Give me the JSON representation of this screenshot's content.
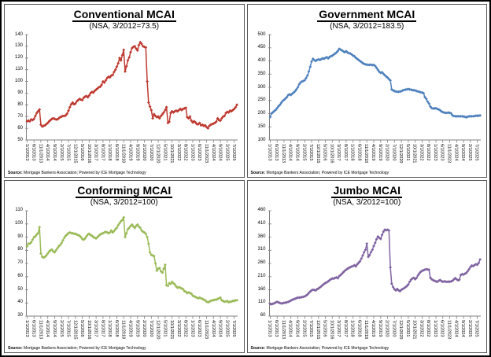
{
  "source_note": {
    "prefix": "Source:",
    "text": " Mortgage Bankers Association; Powered by ICE Mortgage Technology"
  },
  "chart_data": {
    "type": "line",
    "x_note": "monthly values, Jan 2013 through Sep 2025; tick labels every 5 months",
    "x_tick_labels": [
      "1/1/2013",
      "6/1/2013",
      "11/1/2013",
      "4/1/2014",
      "9/1/2014",
      "2/1/2015",
      "7/1/2015",
      "12/1/2015",
      "5/1/2016",
      "10/1/2016",
      "3/1/2017",
      "8/1/2017",
      "1/1/2018",
      "6/1/2018",
      "11/1/2018",
      "4/1/2019",
      "9/1/2019",
      "2/1/2020",
      "7/1/2020",
      "12/1/2020",
      "5/1/2021",
      "10/1/2021",
      "3/1/2022",
      "8/1/2022",
      "1/1/2023",
      "6/1/2023",
      "11/1/2023",
      "4/1/2024",
      "9/1/2024",
      "2/1/2025",
      "7/1/2025"
    ],
    "legend": "none",
    "grid": "off",
    "marker": "diamond",
    "charts": [
      {
        "title": "Conventional MCAI",
        "subtitle": "(NSA, 3/2012=73.5)",
        "color": "#BE3A31",
        "ylim": [
          50,
          140
        ],
        "ystep": 10,
        "values": [
          66,
          66.5,
          66,
          67.5,
          67,
          68,
          70.5,
          73,
          74.5,
          76,
          63,
          61.5,
          62,
          62.5,
          63.5,
          64.5,
          66,
          67,
          68,
          68.5,
          68,
          67.5,
          67.5,
          68.5,
          69.5,
          70,
          70.5,
          70.5,
          71,
          72.5,
          75,
          78,
          80.5,
          82,
          80.5,
          81,
          83,
          84,
          85,
          84.5,
          84,
          86,
          87,
          87.5,
          86.5,
          88,
          90,
          91,
          90.5,
          92,
          93,
          94,
          95,
          95.5,
          97,
          100,
          99,
          101,
          103,
          104,
          103.5,
          105,
          105.5,
          108,
          110,
          112.5,
          115.5,
          120,
          118,
          122.5,
          127,
          108.5,
          113,
          118,
          120.5,
          125,
          128.5,
          129.5,
          130,
          128,
          126.5,
          131,
          133.5,
          132,
          130,
          129.5,
          129,
          100,
          82,
          78.5,
          75.5,
          68.5,
          72,
          70.5,
          69.5,
          70,
          68.5,
          70.5,
          72,
          73.5,
          75.5,
          78,
          64.5,
          65.5,
          73,
          74.5,
          73.5,
          74.5,
          75,
          74.5,
          75.5,
          76.5,
          75.5,
          76.5,
          77,
          77.5,
          69.5,
          68.5,
          70,
          66.5,
          65,
          66,
          65,
          63.5,
          63.5,
          64.5,
          62.5,
          63,
          62,
          62.5,
          61,
          60,
          62,
          63,
          63.5,
          64,
          64.5,
          65.5,
          68.5,
          67,
          66.5,
          68.5,
          70,
          70.5,
          73,
          74,
          73.5,
          75,
          74.5,
          75.5,
          76.5,
          78,
          80
        ]
      },
      {
        "title": "Government MCAI",
        "subtitle": "(NSA, 3/2012=183.5)",
        "color": "#4F81BD",
        "ylim": [
          100,
          500
        ],
        "ystep": 50,
        "values": [
          187,
          201,
          205,
          210,
          214,
          221,
          228,
          233,
          241,
          248,
          252,
          257,
          262,
          270,
          273,
          271,
          276,
          280,
          285,
          292,
          300,
          311,
          318,
          322,
          324,
          327,
          335,
          345,
          360,
          378,
          398,
          408,
          403,
          400,
          404,
          406,
          404,
          407,
          410,
          408,
          412,
          414,
          410,
          415,
          418,
          420,
          424,
          428,
          432,
          438,
          446,
          443,
          440,
          436,
          433,
          437,
          432,
          430,
          428,
          425,
          420,
          418,
          412,
          408,
          404,
          400,
          396,
          392,
          389,
          387,
          386,
          385,
          385,
          386,
          384,
          385,
          381,
          374,
          366,
          359,
          355,
          357,
          351,
          346,
          341,
          337,
          331,
          326,
          292,
          288,
          286,
          284,
          283,
          283,
          284,
          285,
          288,
          290,
          291,
          292,
          293,
          292,
          291,
          289,
          289,
          288,
          286,
          284,
          283,
          281,
          280,
          278,
          263,
          256,
          246,
          238,
          227,
          221,
          219,
          220,
          220,
          218,
          216,
          213,
          208,
          206,
          204,
          203,
          203,
          204,
          203,
          201,
          193,
          191,
          190,
          190,
          190,
          190,
          190,
          190,
          189,
          188,
          186,
          188,
          190,
          190,
          190,
          190,
          191,
          192,
          192,
          192,
          193
        ]
      },
      {
        "title": "Conforming MCAI",
        "subtitle": "(NSA, 3/2012=100)",
        "color": "#9BBB59",
        "ylim": [
          30,
          110
        ],
        "ystep": 10,
        "values": [
          83,
          85,
          85,
          86,
          88,
          90,
          90.5,
          92,
          93,
          97.5,
          77.5,
          75,
          74.5,
          75,
          76,
          77.5,
          79,
          80,
          80.5,
          79,
          78.5,
          80,
          81.5,
          83,
          84,
          85.5,
          87.5,
          89.5,
          91,
          92,
          93,
          93.5,
          93,
          93,
          92.5,
          92.5,
          92,
          91.5,
          91,
          90,
          88.5,
          88,
          89,
          90.5,
          92,
          92.5,
          91.5,
          91,
          90,
          89.5,
          89,
          90,
          91,
          92,
          92.5,
          93,
          93.5,
          94,
          93.5,
          93,
          93.5,
          95,
          93.5,
          94.5,
          96,
          97,
          99,
          100.5,
          102,
          103,
          105,
          90,
          93,
          96,
          97,
          98.5,
          99.5,
          98,
          97,
          98.5,
          99.5,
          98,
          97,
          95,
          94,
          93.5,
          92.5,
          90,
          85,
          78.5,
          76.5,
          76,
          75.5,
          70,
          64.5,
          66,
          66.5,
          64,
          63,
          66,
          69,
          53.5,
          53,
          55,
          54.5,
          56,
          55,
          54,
          52.5,
          51.5,
          52,
          51.5,
          51,
          50.5,
          49,
          48.5,
          47.5,
          48,
          47.5,
          47,
          45.5,
          45,
          44.5,
          44,
          43.5,
          44,
          43.5,
          43,
          42.5,
          42,
          41,
          40.5,
          41,
          41.5,
          42,
          42,
          42.5,
          42.5,
          43,
          43.5,
          44,
          42,
          41.5,
          41,
          41,
          41.5,
          40.5,
          41,
          41,
          41.5,
          41.5,
          42,
          42
        ]
      },
      {
        "title": "Jumbo MCAI",
        "subtitle": "(NSA, 3/2012=100)",
        "color": "#8064A2",
        "ylim": [
          60,
          460
        ],
        "ystep": 50,
        "values": [
          106,
          105,
          107,
          109,
          112,
          114,
          112,
          110,
          108,
          109,
          110,
          111,
          112,
          114,
          116,
          119,
          122,
          124,
          126,
          128,
          130,
          130,
          131,
          132,
          133,
          135,
          138,
          142,
          148,
          153,
          158,
          160,
          159,
          158,
          162,
          165,
          169,
          173,
          178,
          182,
          186,
          188,
          192,
          196,
          200,
          203,
          202,
          205,
          207,
          204,
          212,
          216,
          221,
          227,
          232,
          236,
          240,
          243,
          246,
          248,
          250,
          253,
          249,
          256,
          262,
          268,
          278,
          290,
          302,
          312,
          335,
          285,
          292,
          303,
          312,
          326,
          338,
          352,
          362,
          357,
          353,
          368,
          380,
          388,
          386,
          388,
          385,
          245,
          183,
          170,
          162,
          158,
          163,
          158,
          155,
          160,
          163,
          166,
          170,
          174,
          180,
          190,
          198,
          203,
          205,
          200,
          205,
          215,
          222,
          228,
          232,
          234,
          236,
          238,
          237,
          236,
          206,
          200,
          196,
          194,
          192,
          190,
          194,
          197,
          193,
          190,
          192,
          191,
          190,
          191,
          190,
          192,
          194,
          199,
          204,
          200,
          196,
          198,
          216,
          219,
          218,
          221,
          224,
          230,
          238,
          246,
          252,
          250,
          254,
          257,
          255,
          262,
          275
        ]
      }
    ]
  }
}
